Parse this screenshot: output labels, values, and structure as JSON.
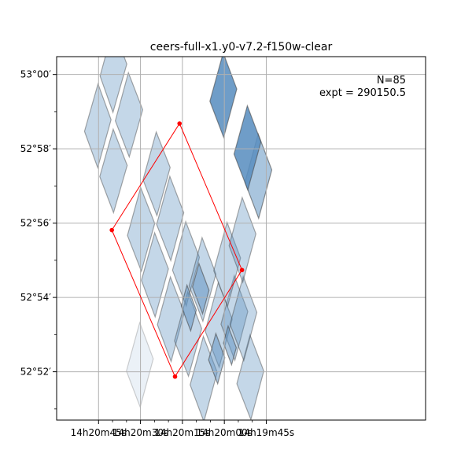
{
  "chart_data": {
    "type": "scatter",
    "title": "ceers-full-x1.y0-v7.2-f150w-clear",
    "annotation": {
      "line1": "N=85",
      "line2": "expt = 290150.5"
    },
    "xlim": [
      287.5,
      286.95
    ],
    "ylim": [
      52.845,
      53.008
    ],
    "grid": true,
    "grid_color": "#b0b0b0",
    "x_ticks": [
      {
        "value": 287.4375,
        "label": "14h20m45s"
      },
      {
        "value": 287.375,
        "label": "14h20m30s"
      },
      {
        "value": 287.3125,
        "label": "14h20m15s"
      },
      {
        "value": 287.25,
        "label": "14h20m00s"
      },
      {
        "value": 287.1875,
        "label": "14h19m45s"
      }
    ],
    "y_ticks": [
      {
        "value": 53.0,
        "label": "53°00′"
      },
      {
        "value": 52.96666667,
        "label": "52°58′"
      },
      {
        "value": 52.93333333,
        "label": "52°56′"
      },
      {
        "value": 52.9,
        "label": "52°54′"
      },
      {
        "value": 52.86666667,
        "label": "52°52′"
      }
    ],
    "footprint_color": "#5b8fc0",
    "footprints": [
      {
        "corners": [
          [
            287.4585,
            52.9745
          ],
          [
            287.4383,
            52.9958
          ],
          [
            287.4188,
            52.9797
          ],
          [
            287.4388,
            52.9582
          ]
        ],
        "alpha": 0.36
      },
      {
        "corners": [
          [
            287.4353,
            52.9993
          ],
          [
            287.4157,
            53.021
          ],
          [
            287.3954,
            53.0047
          ],
          [
            287.416,
            52.983
          ]
        ],
        "alpha": 0.36
      },
      {
        "corners": [
          [
            287.4357,
            52.9542
          ],
          [
            287.4157,
            52.9755
          ],
          [
            287.3948,
            52.9592
          ],
          [
            287.4152,
            52.938
          ]
        ],
        "alpha": 0.36
      },
      {
        "corners": [
          [
            287.4125,
            52.9792
          ],
          [
            287.393,
            53.0008
          ],
          [
            287.3717,
            52.9842
          ],
          [
            287.3918,
            52.963
          ]
        ],
        "alpha": 0.36
      },
      {
        "corners": [
          [
            287.3945,
            52.9278
          ],
          [
            287.3747,
            52.9493
          ],
          [
            287.3538,
            52.9332
          ],
          [
            287.3737,
            52.9117
          ]
        ],
        "alpha": 0.36
      },
      {
        "corners": [
          [
            287.3712,
            52.9528
          ],
          [
            287.3515,
            52.9742
          ],
          [
            287.3308,
            52.9583
          ],
          [
            287.3505,
            52.9367
          ]
        ],
        "alpha": 0.36
      },
      {
        "corners": [
          [
            287.3736,
            52.9077
          ],
          [
            287.3539,
            52.929
          ],
          [
            287.3333,
            52.9128
          ],
          [
            287.3532,
            52.8913
          ]
        ],
        "alpha": 0.36
      },
      {
        "corners": [
          [
            287.351,
            52.9327
          ],
          [
            287.3312,
            52.9543
          ],
          [
            287.3105,
            52.938
          ],
          [
            287.3298,
            52.9165
          ]
        ],
        "alpha": 0.36
      },
      {
        "corners": [
          [
            287.3498,
            52.8878
          ],
          [
            287.3304,
            52.9092
          ],
          [
            287.3098,
            52.8932
          ],
          [
            287.3294,
            52.8713
          ]
        ],
        "alpha": 0.36
      },
      {
        "corners": [
          [
            287.3273,
            52.9122
          ],
          [
            287.3075,
            52.934
          ],
          [
            287.2872,
            52.918
          ],
          [
            287.3068,
            52.8962
          ]
        ],
        "alpha": 0.36
      },
      {
        "corners": [
          [
            287.3243,
            52.8805
          ],
          [
            287.3045,
            52.9025
          ],
          [
            287.2838,
            52.886
          ],
          [
            287.3035,
            52.8647
          ]
        ],
        "alpha": 0.36
      },
      {
        "corners": [
          [
            287.3025,
            52.9052
          ],
          [
            287.2832,
            52.9268
          ],
          [
            287.2625,
            52.9105
          ],
          [
            287.282,
            52.8893
          ]
        ],
        "alpha": 0.36
      },
      {
        "corners": [
          [
            287.301,
            52.8608
          ],
          [
            287.2813,
            52.8825
          ],
          [
            287.2607,
            52.8665
          ],
          [
            287.2805,
            52.8443
          ]
        ],
        "alpha": 0.36
      },
      {
        "corners": [
          [
            287.2785,
            52.8848
          ],
          [
            287.259,
            52.9067
          ],
          [
            287.2383,
            52.8903
          ],
          [
            287.2577,
            52.8687
          ]
        ],
        "alpha": 0.36
      },
      {
        "corners": [
          [
            287.255,
            52.888
          ],
          [
            287.2352,
            52.9098
          ],
          [
            287.215,
            52.8937
          ],
          [
            287.2343,
            52.8718
          ]
        ],
        "alpha": 0.36
      },
      {
        "corners": [
          [
            287.2313,
            52.8613
          ],
          [
            287.2117,
            52.8832
          ],
          [
            287.1912,
            52.867
          ],
          [
            287.2105,
            52.8452
          ]
        ],
        "alpha": 0.36
      },
      {
        "corners": [
          [
            287.2658,
            52.912
          ],
          [
            287.246,
            52.9337
          ],
          [
            287.2258,
            52.9177
          ],
          [
            287.2452,
            52.896
          ]
        ],
        "alpha": 0.36
      },
      {
        "corners": [
          [
            287.2415,
            52.888
          ],
          [
            287.2218,
            52.9095
          ],
          [
            287.2015,
            52.8933
          ],
          [
            287.221,
            52.8717
          ]
        ],
        "alpha": 0.36
      },
      {
        "corners": [
          [
            287.243,
            52.9232
          ],
          [
            287.2233,
            52.9448
          ],
          [
            287.203,
            52.9285
          ],
          [
            287.2225,
            52.9068
          ]
        ],
        "alpha": 0.36
      },
      {
        "corners": [
          [
            287.2193,
            52.9517
          ],
          [
            287.1995,
            52.9733
          ],
          [
            287.1793,
            52.9572
          ],
          [
            287.1988,
            52.9355
          ]
        ],
        "alpha": 0.52
      },
      {
        "corners": [
          [
            287.2355,
            52.9643
          ],
          [
            287.2157,
            52.986
          ],
          [
            287.1955,
            52.9698
          ],
          [
            287.215,
            52.9482
          ]
        ],
        "alpha": 0.88
      },
      {
        "corners": [
          [
            287.2715,
            52.988
          ],
          [
            287.2517,
            53.0097
          ],
          [
            287.2315,
            52.9935
          ],
          [
            287.251,
            52.9718
          ]
        ],
        "alpha": 0.88
      },
      {
        "corners": [
          [
            287.3142,
            52.8962
          ],
          [
            287.3057,
            52.9055
          ],
          [
            287.2918,
            52.8943
          ],
          [
            287.3002,
            52.885
          ]
        ],
        "alpha": 0.5
      },
      {
        "corners": [
          [
            287.2975,
            52.9047
          ],
          [
            287.2878,
            52.9152
          ],
          [
            287.2728,
            52.9032
          ],
          [
            287.2825,
            52.8927
          ]
        ],
        "alpha": 0.5
      },
      {
        "corners": [
          [
            287.2735,
            52.872
          ],
          [
            287.2627,
            52.8838
          ],
          [
            287.2493,
            52.873
          ],
          [
            287.26,
            52.8613
          ]
        ],
        "alpha": 0.5
      },
      {
        "corners": [
          [
            287.2513,
            52.8795
          ],
          [
            287.2443,
            52.8872
          ],
          [
            287.2322,
            52.8775
          ],
          [
            287.2392,
            52.8698
          ]
        ],
        "alpha": 0.5
      },
      {
        "corners": [
          [
            287.396,
            52.867
          ],
          [
            287.3762,
            52.8887
          ],
          [
            287.356,
            52.8725
          ],
          [
            287.3755,
            52.8508
          ]
        ],
        "alpha": 0.12
      }
    ],
    "series": [
      {
        "points": [
          {
            "x": 287.4177,
            "y": 52.9302
          },
          {
            "x": 287.3168,
            "y": 52.978
          },
          {
            "x": 287.2237,
            "y": 52.9123
          },
          {
            "x": 287.3235,
            "y": 52.8645
          }
        ],
        "color": "#ff0000"
      }
    ]
  }
}
